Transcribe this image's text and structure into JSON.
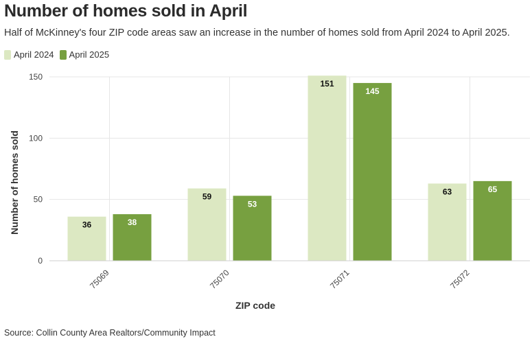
{
  "title": "Number of homes sold in April",
  "subtitle": "Half of McKinney's four ZIP code areas saw an increase in the number of homes sold from April 2024 to April 2025.",
  "source": "Source: Collin County Area Realtors/Community Impact",
  "colors": {
    "april_2024": "#dce8c2",
    "april_2025": "#77a040",
    "grid": "#e6e6e6"
  },
  "chart_data": {
    "type": "bar",
    "categories": [
      "75069",
      "75070",
      "75071",
      "75072"
    ],
    "series": [
      {
        "name": "April 2024",
        "values": [
          36,
          59,
          151,
          63
        ]
      },
      {
        "name": "April 2025",
        "values": [
          38,
          53,
          145,
          65
        ]
      }
    ],
    "xlabel": "ZIP code",
    "ylabel": "Number of homes sold",
    "ylim": [
      0,
      150
    ],
    "yticks": [
      0,
      50,
      100,
      150
    ],
    "grid": true,
    "legend_position": "top-left"
  }
}
